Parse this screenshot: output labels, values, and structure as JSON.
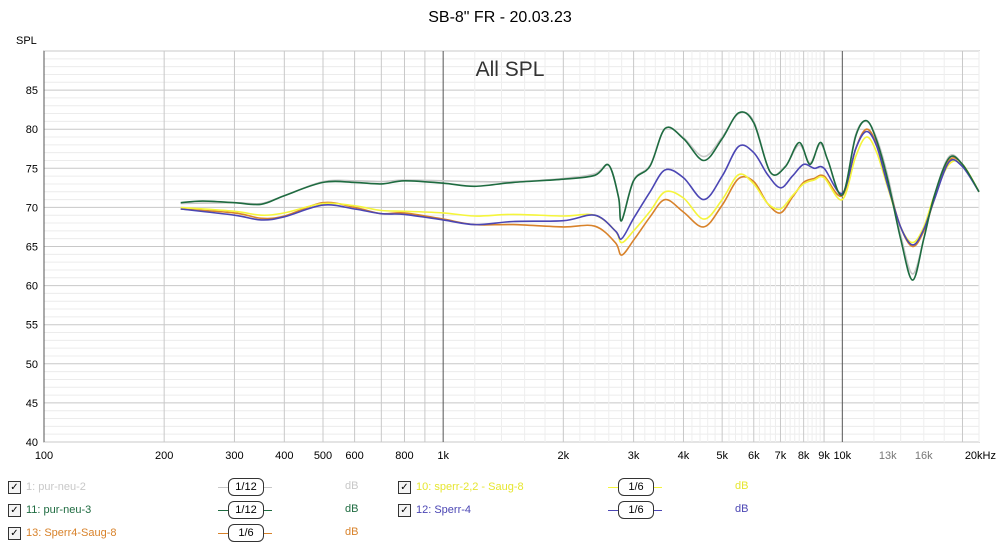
{
  "chart_data": {
    "type": "line",
    "title": "SB-8\" FR - 20.03.23",
    "subtitle": "All SPL",
    "ylabel": "SPL",
    "ylim": [
      40,
      90
    ],
    "xlim": [
      100,
      22000
    ],
    "xscale": "log",
    "grid": true,
    "y_ticks": [
      "40",
      "45",
      "50",
      "55",
      "60",
      "65",
      "70",
      "75",
      "80",
      "85"
    ],
    "x_ticks": [
      {
        "v": 100,
        "label": "100"
      },
      {
        "v": 200,
        "label": "200"
      },
      {
        "v": 300,
        "label": "300"
      },
      {
        "v": 400,
        "label": "400"
      },
      {
        "v": 500,
        "label": "500"
      },
      {
        "v": 600,
        "label": "600"
      },
      {
        "v": 800,
        "label": "800"
      },
      {
        "v": 1000,
        "label": "1k"
      },
      {
        "v": 2000,
        "label": "2k"
      },
      {
        "v": 3000,
        "label": "3k"
      },
      {
        "v": 4000,
        "label": "4k"
      },
      {
        "v": 5000,
        "label": "5k"
      },
      {
        "v": 6000,
        "label": "6k"
      },
      {
        "v": 7000,
        "label": "7k"
      },
      {
        "v": 8000,
        "label": "8k"
      },
      {
        "v": 9000,
        "label": "9k"
      },
      {
        "v": 10000,
        "label": "10k"
      },
      {
        "v": 13000,
        "label": "13k",
        "minor": true
      },
      {
        "v": 16000,
        "label": "16k",
        "minor": true
      },
      {
        "v": 20000,
        "label": "20kHz"
      }
    ],
    "series": [
      {
        "name": "1: pur-neu-2",
        "color": "#c8c8c8",
        "unit": "dB",
        "smoothing": "1/12",
        "x": [
          220,
          300,
          350,
          400,
          500,
          600,
          700,
          800,
          1000,
          1200,
          1500,
          2000,
          2400,
          2600,
          2750,
          2800,
          3000,
          3300,
          3600,
          4000,
          4500,
          5000,
          5500,
          6000,
          6600,
          7200,
          7800,
          8300,
          8800,
          9200,
          10000,
          10800,
          11500,
          12200,
          13000,
          14000,
          15000,
          16000,
          17000,
          18500,
          20000,
          22000
        ],
        "y": [
          70.5,
          70.6,
          70.5,
          71.5,
          73.3,
          73.4,
          73.3,
          73.5,
          73.4,
          73.3,
          73.3,
          73.7,
          74.3,
          75.4,
          71.4,
          68.4,
          73.5,
          75.4,
          80.1,
          78.9,
          76.5,
          79.0,
          82.0,
          81.0,
          74.5,
          75.3,
          78.0,
          75.7,
          78.1,
          76.0,
          71.5,
          79.3,
          81.0,
          78.8,
          74.0,
          66.5,
          61.5,
          66.0,
          71.5,
          76.5,
          75.5,
          72.0
        ]
      },
      {
        "name": "11: pur-neu-3",
        "color": "#1e6b40",
        "unit": "dB",
        "smoothing": "1/12",
        "x": [
          220,
          250,
          300,
          350,
          400,
          500,
          600,
          700,
          800,
          1000,
          1200,
          1500,
          2000,
          2400,
          2600,
          2750,
          2800,
          3000,
          3300,
          3600,
          4000,
          4500,
          5000,
          5500,
          6000,
          6600,
          7200,
          7800,
          8300,
          8800,
          9200,
          10000,
          10800,
          11500,
          12200,
          13000,
          14000,
          15000,
          16000,
          17000,
          18500,
          20000,
          22000
        ],
        "y": [
          70.6,
          70.8,
          70.6,
          70.4,
          71.5,
          73.2,
          73.2,
          73.0,
          73.4,
          73.1,
          72.7,
          73.2,
          73.6,
          74.1,
          75.4,
          71.3,
          68.3,
          73.4,
          75.3,
          80.1,
          78.8,
          76.0,
          78.8,
          82.1,
          80.8,
          74.5,
          75.2,
          78.3,
          75.5,
          78.3,
          76.0,
          71.6,
          79.1,
          81.1,
          78.5,
          73.5,
          66.0,
          60.7,
          66.0,
          71.5,
          76.3,
          75.5,
          72.0
        ]
      },
      {
        "name": "10: sperr-2,2 - Saug-8",
        "color": "#f5f53c",
        "unit": "dB",
        "smoothing": "1/6",
        "x": [
          220,
          300,
          350,
          400,
          500,
          600,
          700,
          800,
          1000,
          1200,
          1500,
          2000,
          2400,
          2700,
          2800,
          3000,
          3300,
          3600,
          4000,
          4500,
          5000,
          5500,
          6000,
          6500,
          7000,
          7500,
          8000,
          8500,
          9000,
          10000,
          10800,
          11500,
          12200,
          13000,
          14000,
          15000,
          16000,
          17000,
          18500,
          20000,
          22000
        ],
        "y": [
          70.0,
          69.5,
          69.0,
          69.3,
          70.5,
          70.2,
          69.6,
          69.5,
          69.3,
          68.9,
          69.1,
          68.9,
          69.0,
          67.0,
          65.5,
          67.0,
          69.5,
          72.0,
          71.2,
          68.5,
          71.0,
          74.2,
          73.0,
          70.5,
          69.8,
          71.5,
          73.0,
          73.5,
          73.8,
          71.0,
          76.5,
          79.0,
          77.0,
          72.5,
          67.5,
          65.5,
          67.5,
          71.5,
          75.5,
          75.5,
          72.0
        ]
      },
      {
        "name": "12: Sperr-4",
        "color": "#4b46b4",
        "unit": "dB",
        "smoothing": "1/6",
        "x": [
          220,
          300,
          350,
          400,
          500,
          600,
          700,
          800,
          1000,
          1200,
          1500,
          2000,
          2400,
          2700,
          2800,
          3000,
          3300,
          3600,
          4000,
          4500,
          5000,
          5500,
          6000,
          6500,
          7000,
          7500,
          8000,
          8500,
          9000,
          10000,
          10800,
          11500,
          12200,
          13000,
          14000,
          15000,
          16000,
          17000,
          18500,
          20000,
          22000
        ],
        "y": [
          69.8,
          69.0,
          68.4,
          68.8,
          70.3,
          69.8,
          69.2,
          69.1,
          68.4,
          67.8,
          68.2,
          68.3,
          69.0,
          67.0,
          66.0,
          68.6,
          72.0,
          74.8,
          73.8,
          71.0,
          74.0,
          77.8,
          77.0,
          74.2,
          72.5,
          74.0,
          75.5,
          75.0,
          75.0,
          71.8,
          77.5,
          79.7,
          77.8,
          72.8,
          67.5,
          65.2,
          67.2,
          71.0,
          75.8,
          75.2,
          72.0
        ]
      },
      {
        "name": "13: Sperr4-Saug-8",
        "color": "#d8822a",
        "unit": "dB",
        "smoothing": "1/6",
        "x": [
          220,
          300,
          350,
          400,
          500,
          600,
          700,
          800,
          1000,
          1200,
          1500,
          2000,
          2400,
          2700,
          2800,
          3000,
          3300,
          3600,
          4000,
          4500,
          5000,
          5500,
          6000,
          6500,
          7000,
          7500,
          8000,
          8500,
          9000,
          10000,
          10800,
          11500,
          12200,
          13000,
          14000,
          15000,
          16000,
          17000,
          18500,
          20000,
          22000
        ],
        "y": [
          69.8,
          69.3,
          68.6,
          68.9,
          70.6,
          70.0,
          69.2,
          69.3,
          68.5,
          67.8,
          67.8,
          67.5,
          67.6,
          65.5,
          63.9,
          65.8,
          68.8,
          71.0,
          69.4,
          67.5,
          70.3,
          73.7,
          73.3,
          70.5,
          69.3,
          71.3,
          73.2,
          73.7,
          74.0,
          71.5,
          77.5,
          80.0,
          78.0,
          73.0,
          67.5,
          65.0,
          67.0,
          71.0,
          76.0,
          75.5,
          72.0
        ]
      }
    ]
  },
  "legend": [
    {
      "label": "1: pur-neu-2",
      "checked": "✓",
      "smoothing": "1/12",
      "unit": "dB",
      "color": "#c8c8c8"
    },
    {
      "label": "10: sperr-2,2 - Saug-8",
      "checked": "✓",
      "smoothing": "1/6",
      "unit": "dB",
      "color": "#f5f53c"
    },
    {
      "label": "11: pur-neu-3",
      "checked": "✓",
      "smoothing": "1/12",
      "unit": "dB",
      "color": "#1e6b40"
    },
    {
      "label": "12: Sperr-4",
      "checked": "✓",
      "smoothing": "1/6",
      "unit": "dB",
      "color": "#4b46b4"
    },
    {
      "label": "13: Sperr4-Saug-8",
      "checked": "✓",
      "smoothing": "1/6",
      "unit": "dB",
      "color": "#d8822a"
    }
  ]
}
